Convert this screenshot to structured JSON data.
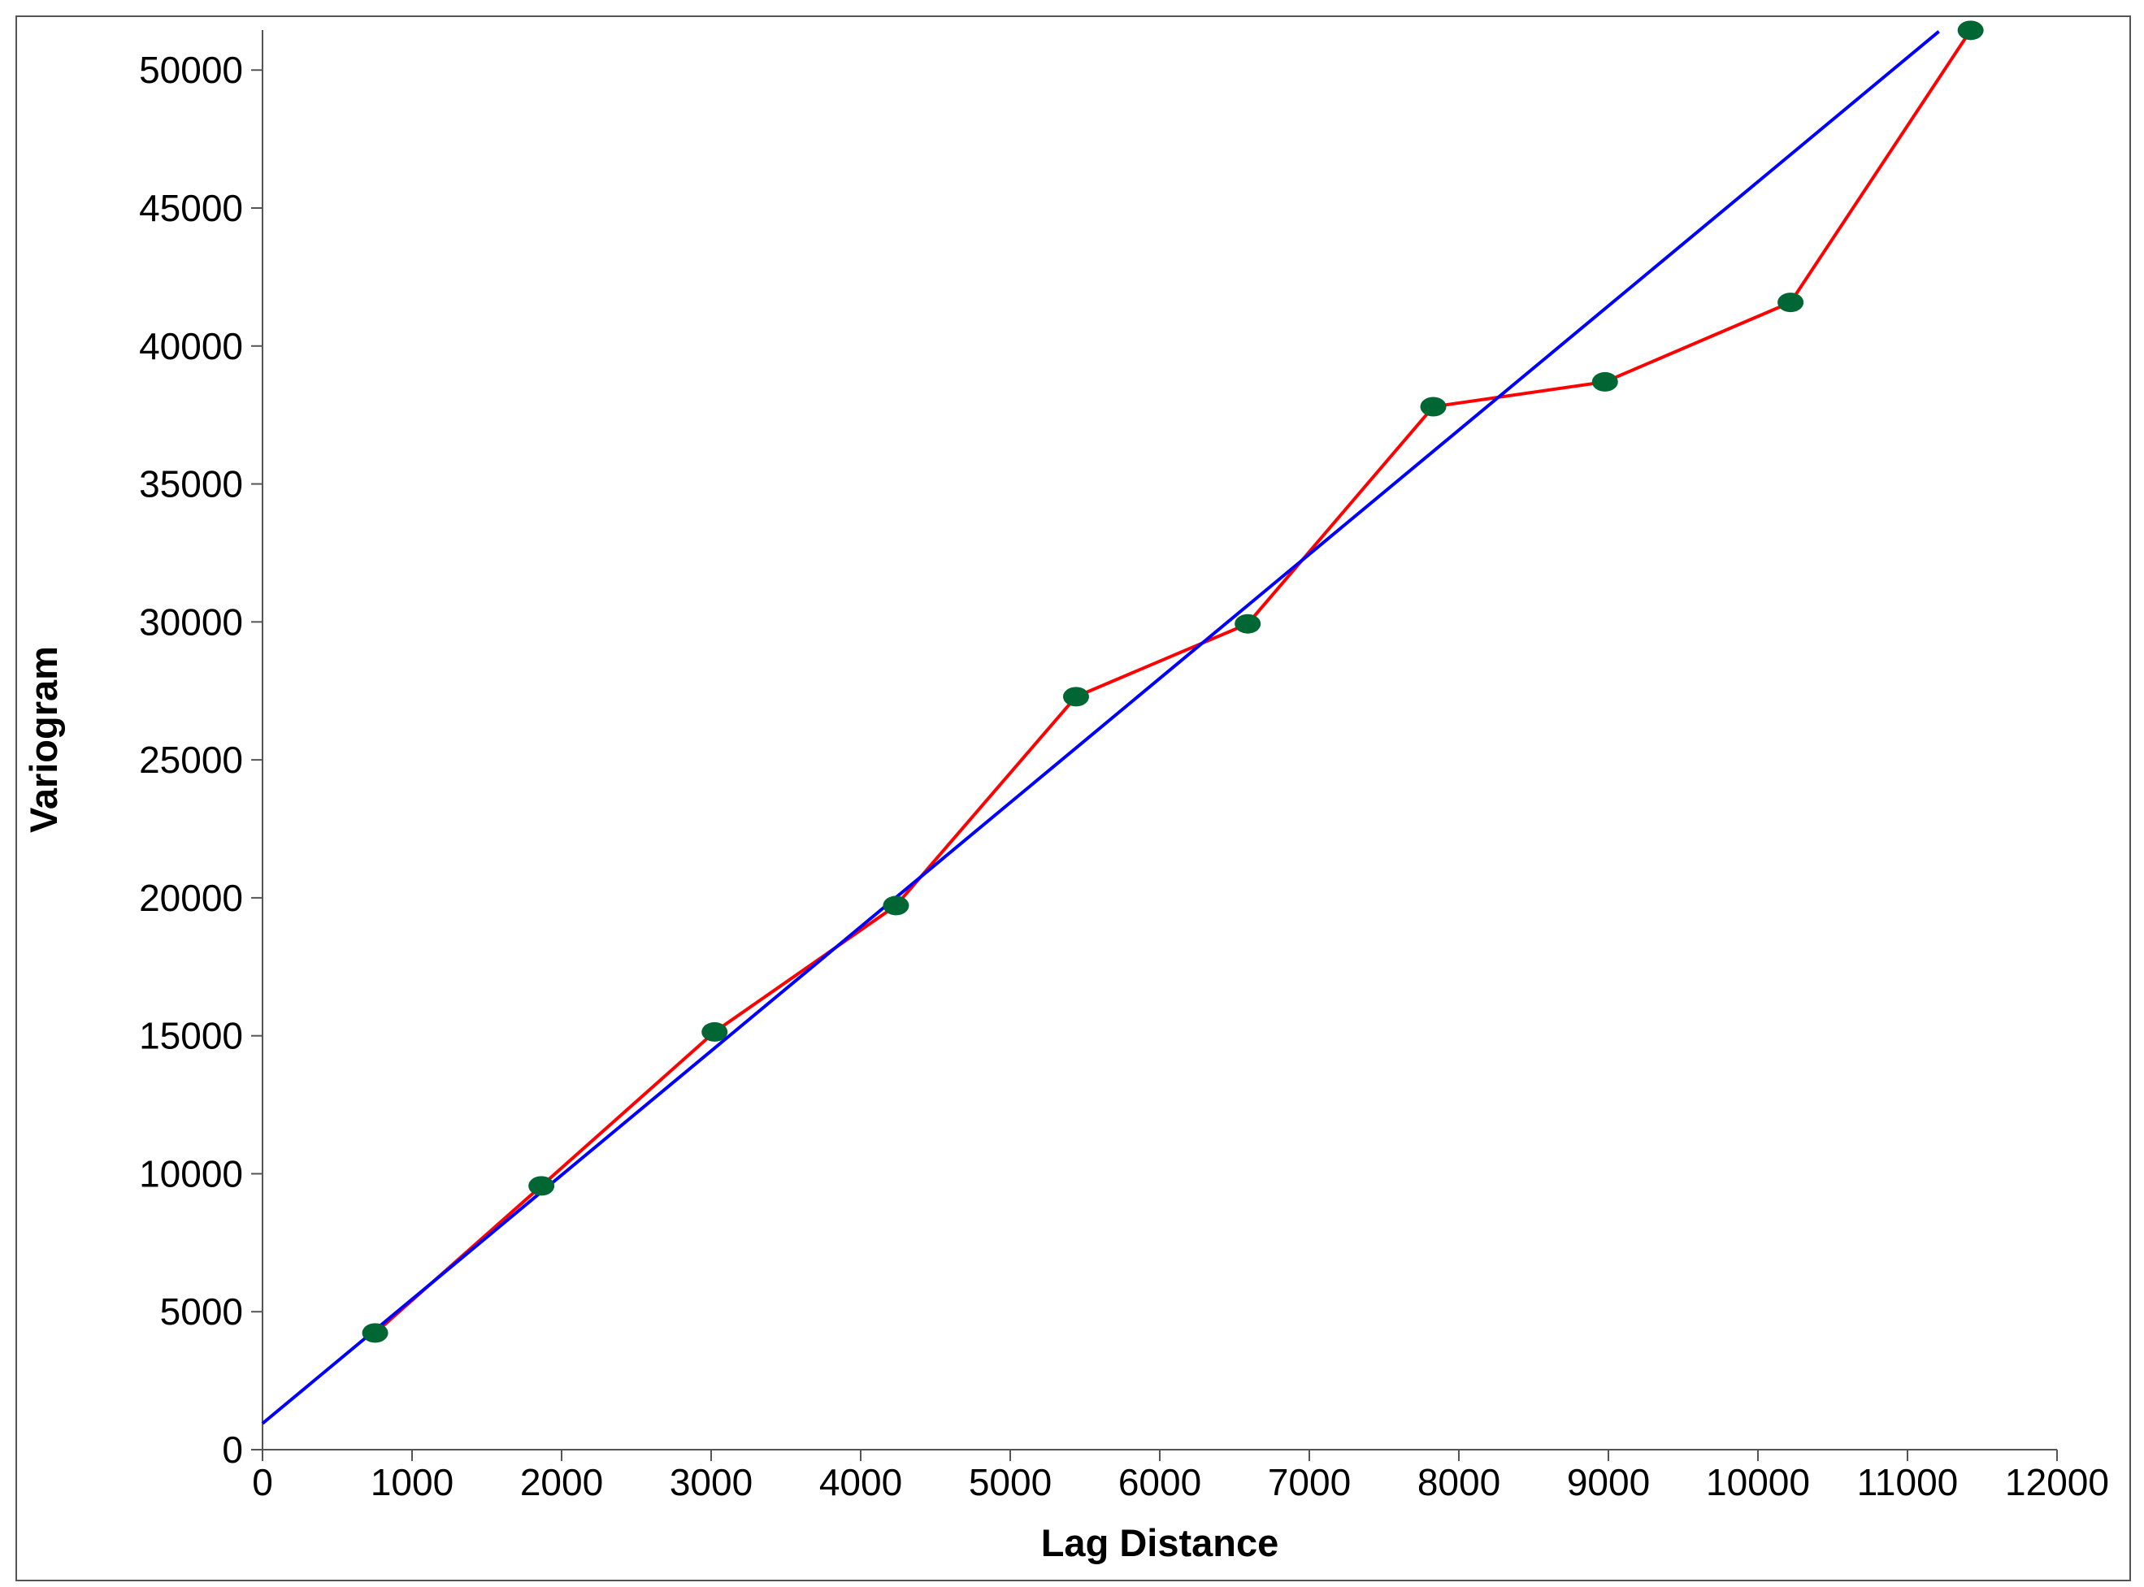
{
  "chart_data": {
    "type": "line",
    "x_label": "Lag Distance",
    "y_label": "Variogram",
    "xlim": [
      0,
      12000
    ],
    "xticks": [
      0,
      1000,
      2000,
      3000,
      4000,
      5000,
      6000,
      7000,
      8000,
      9000,
      10000,
      11000,
      12000
    ],
    "ylim": [
      0,
      51450
    ],
    "yticks": [
      0,
      5000,
      10000,
      15000,
      20000,
      25000,
      30000,
      35000,
      40000,
      45000,
      50000
    ],
    "series": [
      {
        "color": "#ff0000",
        "marker_color": "#006633",
        "x": [
          753,
          1865,
          3023,
          4236,
          5440,
          6588,
          7829,
          8977,
          10218,
          11422
        ],
        "values": [
          4230,
          9560,
          15140,
          19720,
          27290,
          29930,
          37800,
          38700,
          41580,
          51440
        ]
      },
      {
        "color": "#0000ff",
        "x": [
          0,
          11210
        ],
        "values": [
          950,
          51400
        ]
      }
    ]
  }
}
